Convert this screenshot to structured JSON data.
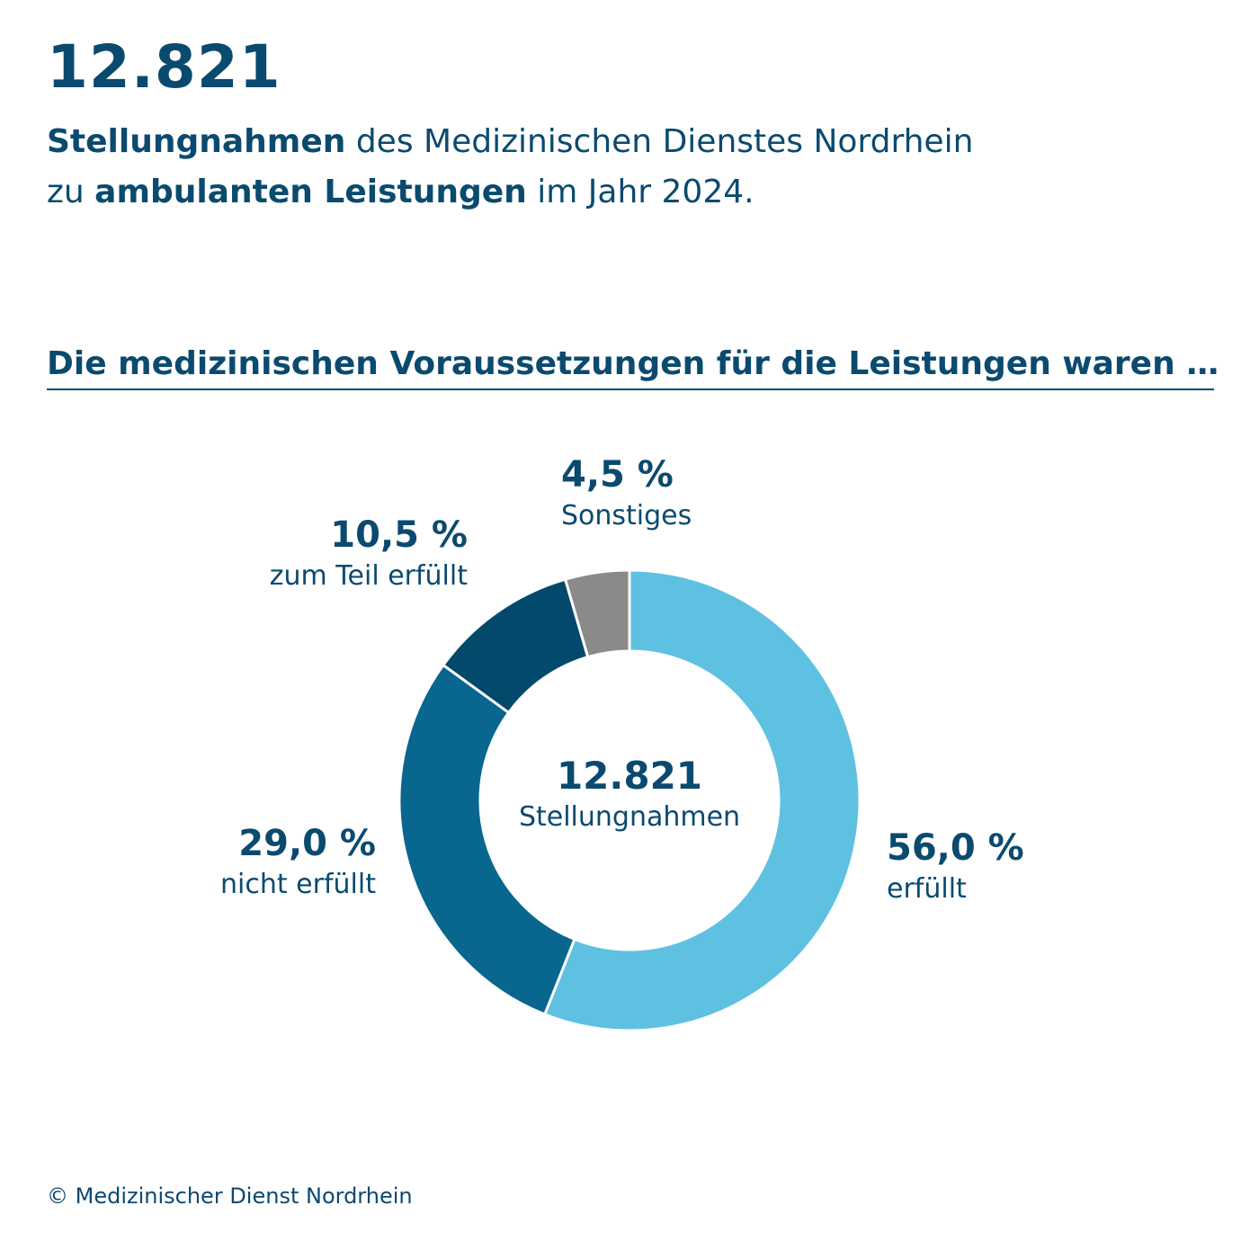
{
  "header": {
    "total": "12.821",
    "line1_bold": "Stellungnahmen",
    "line1_rest": " des Medizinischen Dienstes Nordrhein",
    "line2_pre": "zu ",
    "line2_bold": "ambulanten Leistungen",
    "line2_rest": " im Jahr 2024."
  },
  "section_heading": "Die medizinischen Voraussetzungen für die Leistungen waren …",
  "center": {
    "number": "12.821",
    "caption": "Stellungnahmen"
  },
  "footer": "© Medizinischer Dienst Nordrhein",
  "chart_data": {
    "type": "pie",
    "variant": "donut",
    "unit": "%",
    "start": "top, clockwise",
    "slices": [
      {
        "label": "erfüllt",
        "value": 56.0,
        "display": "56,0 %",
        "color": "#5fc1e2"
      },
      {
        "label": "nicht erfüllt",
        "value": 29.0,
        "display": "29,0 %",
        "color": "#08668f"
      },
      {
        "label": "zum Teil erfüllt",
        "value": 10.5,
        "display": "10,5 %",
        "color": "#03496b"
      },
      {
        "label": "Sonstiges",
        "value": 4.5,
        "display": "4,5 %",
        "color": "#8a8a8a"
      }
    ]
  }
}
